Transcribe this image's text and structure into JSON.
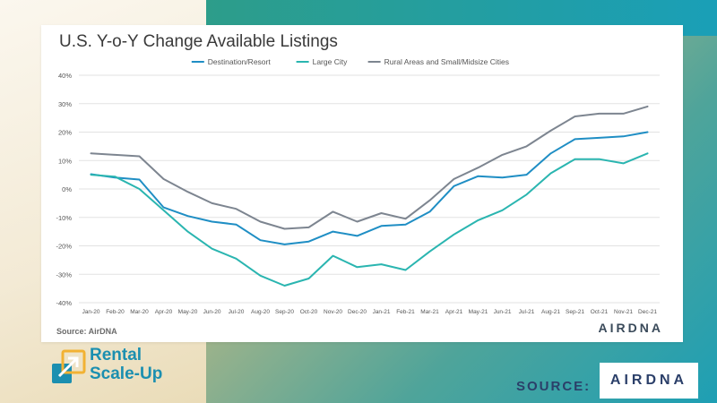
{
  "chart_data": {
    "type": "line",
    "title": "U.S. Y-o-Y Change Available Listings",
    "categories": [
      "Jan-20",
      "Feb-20",
      "Mar-20",
      "Apr-20",
      "May-20",
      "Jun-20",
      "Jul-20",
      "Aug-20",
      "Sep-20",
      "Oct-20",
      "Nov-20",
      "Dec-20",
      "Jan-21",
      "Feb-21",
      "Mar-21",
      "Apr-21",
      "May-21",
      "Jun-21",
      "Jul-21",
      "Aug-21",
      "Sep-21",
      "Oct-21",
      "Nov-21",
      "Dec-21"
    ],
    "series": [
      {
        "name": "Destination/Resort",
        "color": "#1f8ec4",
        "values": [
          5.2,
          4.0,
          3.3,
          -6.5,
          -9.5,
          -11.5,
          -12.5,
          -18.0,
          -19.5,
          -18.5,
          -15.0,
          -16.5,
          -13.0,
          -12.5,
          -8.0,
          1.0,
          4.5,
          4.0,
          5.0,
          12.5,
          17.5,
          18.0,
          18.5,
          20.0
        ]
      },
      {
        "name": "Large City",
        "color": "#2ab5b0",
        "values": [
          5.0,
          4.3,
          0.0,
          -7.5,
          -15.0,
          -21.0,
          -24.5,
          -30.5,
          -34.0,
          -31.5,
          -23.5,
          -27.5,
          -26.5,
          -28.5,
          -22.0,
          -16.0,
          -11.0,
          -7.5,
          -2.0,
          5.5,
          10.5,
          10.5,
          9.0,
          12.5
        ]
      },
      {
        "name": "Rural Areas and Small/Midsize Cities",
        "color": "#7d8590",
        "values": [
          12.5,
          12.0,
          11.5,
          3.5,
          -1.0,
          -5.0,
          -7.0,
          -11.5,
          -14.0,
          -13.5,
          -8.0,
          -11.5,
          -8.5,
          -10.5,
          -4.0,
          3.5,
          7.5,
          12.0,
          15.0,
          20.5,
          25.5,
          26.5,
          26.5,
          29.0
        ]
      }
    ],
    "yticks": [
      "40%",
      "30%",
      "20%",
      "10%",
      "0%",
      "-10%",
      "-20%",
      "-30%",
      "-40%"
    ],
    "ylim": [
      -40,
      40
    ],
    "grid": true,
    "legend_position": "top-center"
  },
  "card": {
    "source_text": "Source: AirDNA",
    "logo_text": "AIRDNA"
  },
  "brand": {
    "name_line1": "Rental",
    "name_line2": "Scale-Up"
  },
  "footer": {
    "source_label": "SOURCE:",
    "logo_text": "AIRDNA"
  }
}
